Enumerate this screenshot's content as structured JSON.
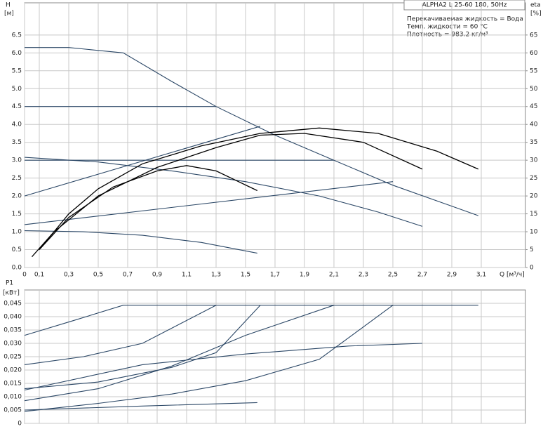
{
  "chart_data": [
    {
      "type": "line",
      "title": "ALPHA2 L 25-60 180, 50Hz",
      "annotations": [
        "Перекачиваемая жидкость = Вода",
        "Темп. жидкости = 60 °C",
        "Плотность = 983.2 кг/м³"
      ],
      "y_label": "H",
      "y_unit": "[м]",
      "y2_label": "eta",
      "y2_unit": "[%]",
      "x_label": "Q [м³/ч]",
      "xlim": [
        0,
        3.4
      ],
      "ylim": [
        0,
        7.4
      ],
      "y2lim": [
        0,
        74
      ],
      "grid": true,
      "xticks": [
        0,
        {
          "value": 0.1,
          "label": "0,1"
        },
        {
          "value": 0.3,
          "label": "0,3"
        },
        {
          "value": 0.5,
          "label": "0,5"
        },
        {
          "value": 0.7,
          "label": "0,7"
        },
        {
          "value": 0.9,
          "label": "0,9"
        },
        {
          "value": 1.1,
          "label": "1,1"
        },
        {
          "value": 1.3,
          "label": "1,3"
        },
        {
          "value": 1.5,
          "label": "1,5"
        },
        {
          "value": 1.7,
          "label": "1,7"
        },
        {
          "value": 1.9,
          "label": "1,9"
        },
        {
          "value": 2.1,
          "label": "2,1"
        },
        {
          "value": 2.3,
          "label": "2,3"
        },
        {
          "value": 2.5,
          "label": "2,5"
        },
        {
          "value": 2.7,
          "label": "2,7"
        },
        {
          "value": 2.9,
          "label": "2,9"
        },
        {
          "value": 3.1,
          "label": "3,1"
        }
      ],
      "yticks": [
        {
          "value": 0,
          "label": "0.0"
        },
        0.5,
        {
          "value": 1,
          "label": "1.0"
        },
        1.5,
        {
          "value": 2,
          "label": "2.0"
        },
        2.5,
        {
          "value": 3,
          "label": "3.0"
        },
        3.5,
        {
          "value": 4,
          "label": "4.0"
        },
        4.5,
        {
          "value": 5,
          "label": "5.0"
        },
        5.5,
        {
          "value": 6,
          "label": "6.0"
        },
        6.5
      ],
      "y2ticks": [
        0,
        5,
        10,
        15,
        20,
        25,
        30,
        35,
        40,
        45,
        50,
        55,
        60,
        65
      ],
      "series": [
        {
          "color": "#2b4766",
          "x": [
            0,
            0.3,
            0.67,
            1.0,
            1.3,
            1.7,
            2.1,
            2.5,
            3.08
          ],
          "values": [
            6.15,
            6.15,
            6.0,
            5.2,
            4.5,
            3.7,
            3.0,
            2.3,
            1.45
          ]
        },
        {
          "color": "#2b4766",
          "x": [
            0,
            1.3
          ],
          "values": [
            4.5,
            4.5
          ]
        },
        {
          "color": "#2b4766",
          "x": [
            0,
            2.1
          ],
          "values": [
            3.0,
            3.0
          ]
        },
        {
          "color": "#2b4766",
          "x": [
            0,
            1.6
          ],
          "values": [
            2.0,
            3.95
          ]
        },
        {
          "color": "#2b4766",
          "x": [
            0,
            2.5
          ],
          "values": [
            1.2,
            2.4
          ]
        },
        {
          "color": "#2b4766",
          "x": [
            0,
            0.5,
            1.0,
            1.5,
            2.0,
            2.4,
            2.7
          ],
          "values": [
            3.08,
            2.95,
            2.7,
            2.4,
            2.0,
            1.55,
            1.15
          ]
        },
        {
          "color": "#2b4766",
          "x": [
            0,
            0.4,
            0.8,
            1.2,
            1.58
          ],
          "values": [
            1.03,
            1.0,
            0.9,
            0.7,
            0.4
          ]
        },
        {
          "color": "#000000",
          "axis": "y2",
          "x": [
            0.1,
            0.3,
            0.5,
            0.8,
            1.2,
            1.6,
            2.0,
            2.4,
            2.8,
            3.08
          ],
          "values": [
            5,
            15,
            22,
            29,
            34,
            37.5,
            39,
            37.5,
            32.5,
            27.5
          ]
        },
        {
          "color": "#000000",
          "axis": "y2",
          "x": [
            0.05,
            0.2,
            0.5,
            0.9,
            1.3,
            1.6,
            1.9,
            2.3,
            2.7
          ],
          "values": [
            3,
            10,
            20,
            28,
            33.5,
            37,
            37.5,
            35,
            27.5
          ]
        },
        {
          "color": "#000000",
          "axis": "y2",
          "x": [
            0.1,
            0.3,
            0.6,
            0.9,
            1.1,
            1.3,
            1.58
          ],
          "values": [
            5,
            14,
            22.5,
            27,
            28.5,
            27,
            21.5
          ]
        }
      ]
    },
    {
      "type": "line",
      "y_label": "P1",
      "y_unit": "[кВт]",
      "xlim": [
        0,
        3.4
      ],
      "ylim": [
        0,
        0.05
      ],
      "grid": true,
      "xticks": [
        0,
        0.1,
        0.3,
        0.5,
        0.7,
        0.9,
        1.1,
        1.3,
        1.5,
        1.7,
        1.9,
        2.1,
        2.3,
        2.5,
        2.7,
        2.9,
        3.1
      ],
      "yticks": [
        0,
        {
          "value": 0.005,
          "label": "0,005"
        },
        {
          "value": 0.01,
          "label": "0,010"
        },
        {
          "value": 0.015,
          "label": "0,015"
        },
        {
          "value": 0.02,
          "label": "0,020"
        },
        {
          "value": 0.025,
          "label": "0,025"
        },
        {
          "value": 0.03,
          "label": "0,030"
        },
        {
          "value": 0.035,
          "label": "0,035"
        },
        {
          "value": 0.04,
          "label": "0,040"
        },
        {
          "value": 0.045,
          "label": "0,045"
        }
      ],
      "series": [
        {
          "color": "#2b4766",
          "x": [
            0,
            0.33,
            0.67,
            3.08
          ],
          "values": [
            0.033,
            0.0385,
            0.0443,
            0.0443
          ]
        },
        {
          "color": "#2b4766",
          "x": [
            0,
            0.4,
            0.8,
            1.3
          ],
          "values": [
            0.022,
            0.025,
            0.03,
            0.0443
          ]
        },
        {
          "color": "#2b4766",
          "x": [
            0,
            0.5,
            1.0,
            1.3,
            1.6
          ],
          "values": [
            0.013,
            0.0155,
            0.021,
            0.0265,
            0.0443
          ]
        },
        {
          "color": "#2b4766",
          "x": [
            0,
            0.5,
            1.0,
            1.5,
            2.1
          ],
          "values": [
            0.0085,
            0.013,
            0.0215,
            0.033,
            0.0443
          ]
        },
        {
          "color": "#2b4766",
          "x": [
            0,
            0.5,
            1.0,
            1.5,
            2.0,
            2.5
          ],
          "values": [
            0.0045,
            0.0075,
            0.011,
            0.016,
            0.024,
            0.0443
          ]
        },
        {
          "color": "#2b4766",
          "x": [
            0,
            0.8,
            1.58
          ],
          "values": [
            0.005,
            0.0065,
            0.0078
          ]
        },
        {
          "color": "#2b4766",
          "x": [
            0,
            0.8,
            1.5,
            2.2,
            2.7
          ],
          "values": [
            0.0125,
            0.022,
            0.026,
            0.029,
            0.03
          ]
        }
      ]
    }
  ]
}
